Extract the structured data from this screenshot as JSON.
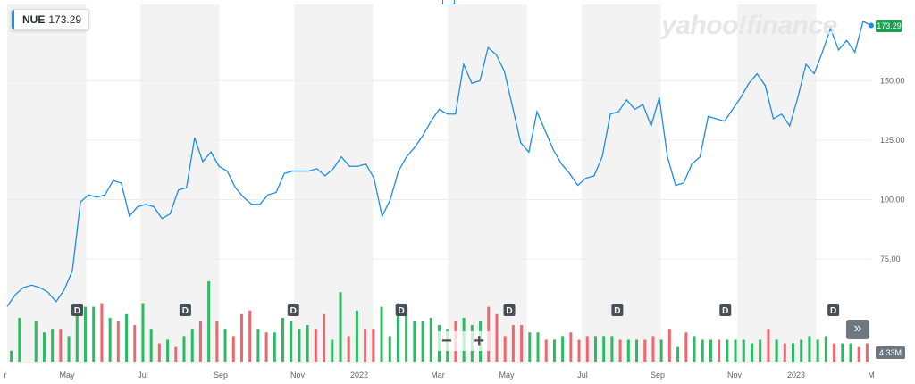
{
  "header": {
    "symbol": "NUE",
    "price": "173.29"
  },
  "brand": "yahoo!finance",
  "price_tag": "173.29",
  "volume_tag": "4.33M",
  "controls": {
    "zoom_out": "−",
    "zoom_in": "+",
    "scroll_right": "»"
  },
  "dividend_marker": "D",
  "colors": {
    "line": "#1c8ce8",
    "up": "#2bbb62",
    "down": "#f0666f",
    "band": "#f3f3f3"
  },
  "chart_data": {
    "type": "line",
    "y_ticks": [
      "150.00",
      "125.00",
      "100.00",
      "75.00"
    ],
    "x_ticks": [
      "r",
      "May",
      "Jul",
      "Sep",
      "Nov",
      "2022",
      "Mar",
      "May",
      "Jul",
      "Sep",
      "Nov",
      "2023",
      "M"
    ],
    "ylim": [
      70,
      178
    ],
    "series": [
      {
        "values": [
          55,
          60,
          63,
          64,
          63,
          61,
          57,
          62,
          70,
          99,
          102,
          101,
          102,
          108,
          107,
          93,
          97,
          98,
          97,
          92,
          94,
          104,
          105,
          126,
          116,
          120,
          114,
          112,
          105,
          101,
          98,
          98,
          102,
          103,
          111,
          112,
          112,
          112,
          113,
          110,
          113,
          118,
          114,
          114,
          115,
          109,
          93,
          100,
          112,
          118,
          122,
          127,
          133,
          138,
          136,
          136,
          157,
          149,
          150,
          164,
          161,
          154,
          139,
          124,
          120,
          137,
          129,
          121,
          115,
          111,
          106,
          109,
          110,
          118,
          136,
          137,
          142,
          138,
          140,
          131,
          143,
          118,
          106,
          107,
          115,
          118,
          135,
          134,
          133,
          138,
          143,
          149,
          153,
          148,
          134,
          136,
          131,
          143,
          157,
          153,
          162,
          172,
          163,
          167,
          162,
          175,
          173.29
        ]
      }
    ],
    "volume": [
      [
        1,
        73
      ],
      [
        1,
        82
      ],
      [
        0,
        70
      ],
      [
        1,
        81
      ],
      [
        1,
        78
      ],
      [
        1,
        79
      ],
      [
        0,
        79
      ],
      [
        1,
        77
      ],
      [
        1,
        85
      ],
      [
        1,
        85
      ],
      [
        1,
        85
      ],
      [
        0,
        86
      ],
      [
        1,
        82
      ],
      [
        0,
        81
      ],
      [
        1,
        83
      ],
      [
        0,
        80
      ],
      [
        1,
        86
      ],
      [
        1,
        79
      ],
      [
        0,
        75
      ],
      [
        1,
        76
      ],
      [
        0,
        74
      ],
      [
        1,
        77
      ],
      [
        1,
        79
      ],
      [
        0,
        81
      ],
      [
        1,
        92
      ],
      [
        0,
        81
      ],
      [
        1,
        79
      ],
      [
        0,
        77
      ],
      [
        0,
        83
      ],
      [
        0,
        84
      ],
      [
        1,
        79
      ],
      [
        0,
        78
      ],
      [
        1,
        78
      ],
      [
        1,
        82
      ],
      [
        1,
        81
      ],
      [
        1,
        79
      ],
      [
        1,
        80
      ],
      [
        0,
        79
      ],
      [
        0,
        83
      ],
      [
        1,
        76
      ],
      [
        1,
        89
      ],
      [
        0,
        77
      ],
      [
        1,
        84
      ],
      [
        0,
        79
      ],
      [
        0,
        79
      ],
      [
        1,
        85
      ],
      [
        1,
        77
      ],
      [
        1,
        86
      ],
      [
        1,
        85
      ],
      [
        1,
        81
      ],
      [
        1,
        81
      ],
      [
        1,
        82
      ],
      [
        1,
        80
      ],
      [
        1,
        79
      ],
      [
        0,
        81
      ],
      [
        1,
        82
      ],
      [
        1,
        80
      ],
      [
        1,
        81
      ],
      [
        0,
        85
      ],
      [
        0,
        83
      ],
      [
        0,
        77
      ],
      [
        0,
        80
      ],
      [
        0,
        80
      ],
      [
        1,
        78
      ],
      [
        1,
        78
      ],
      [
        0,
        76
      ],
      [
        1,
        76
      ],
      [
        1,
        77
      ],
      [
        0,
        78
      ],
      [
        0,
        76
      ],
      [
        0,
        77
      ],
      [
        1,
        77
      ],
      [
        1,
        77
      ],
      [
        1,
        77
      ],
      [
        0,
        76
      ],
      [
        1,
        76
      ],
      [
        1,
        76
      ],
      [
        0,
        76
      ],
      [
        0,
        77
      ],
      [
        1,
        76
      ],
      [
        0,
        79
      ],
      [
        1,
        74
      ],
      [
        0,
        78
      ],
      [
        1,
        77
      ],
      [
        1,
        76
      ],
      [
        1,
        76
      ],
      [
        0,
        76
      ],
      [
        1,
        76
      ],
      [
        1,
        76
      ],
      [
        1,
        76
      ],
      [
        1,
        75
      ],
      [
        1,
        76
      ],
      [
        0,
        79
      ],
      [
        1,
        76
      ],
      [
        0,
        75
      ],
      [
        1,
        75
      ],
      [
        1,
        76
      ],
      [
        1,
        77
      ],
      [
        1,
        76
      ],
      [
        1,
        77
      ],
      [
        0,
        75
      ],
      [
        1,
        75
      ],
      [
        1,
        75
      ],
      [
        0,
        74
      ],
      [
        0,
        75
      ]
    ],
    "dividends": [
      0.06,
      0.185,
      0.31,
      0.435,
      0.56,
      0.685,
      0.81,
      0.935
    ],
    "year_band_edges": [
      0.0,
      0.205,
      0.415,
      0.63,
      0.84,
      1.0
    ]
  }
}
